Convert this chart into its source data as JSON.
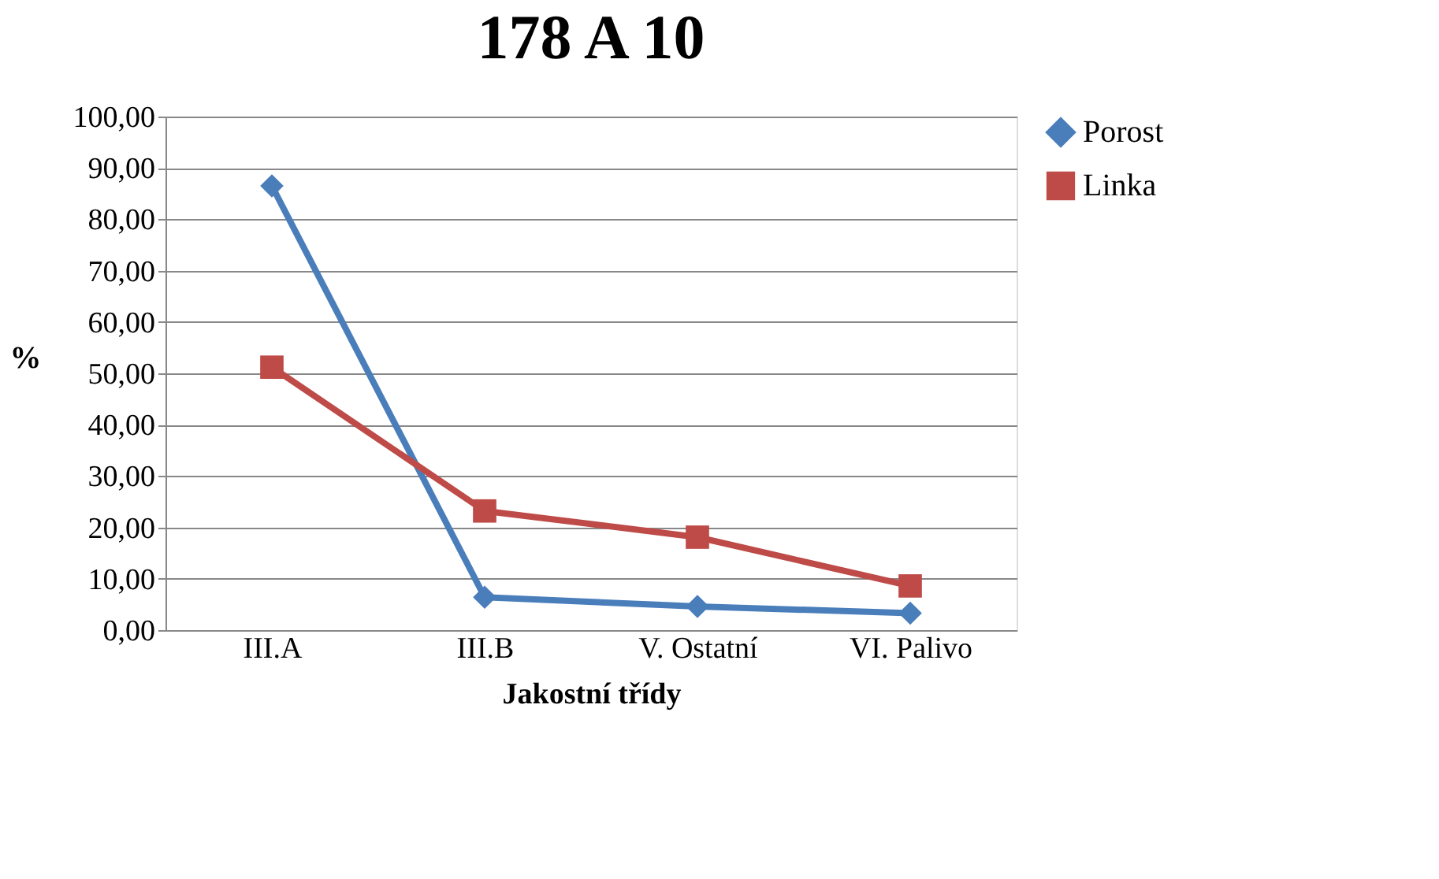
{
  "chart_data": {
    "type": "line",
    "title": "178 A 10",
    "xlabel": "Jakostní třídy",
    "ylabel": "%",
    "categories": [
      "III.A",
      "III.B",
      "V. Ostatní",
      "VI. Palivo"
    ],
    "series": [
      {
        "name": "Porost",
        "color": "#4a7ebb",
        "marker": "diamond",
        "values": [
          86.5,
          6.4,
          4.6,
          3.3
        ]
      },
      {
        "name": "Linka",
        "color": "#be4b48",
        "marker": "square",
        "values": [
          51.2,
          23.2,
          18.1,
          8.6
        ]
      }
    ],
    "ylim": [
      0,
      100
    ],
    "yticks": [
      {
        "value": 0,
        "label": "0,00"
      },
      {
        "value": 10,
        "label": "10,00"
      },
      {
        "value": 20,
        "label": "20,00"
      },
      {
        "value": 30,
        "label": "30,00"
      },
      {
        "value": 40,
        "label": "40,00"
      },
      {
        "value": 50,
        "label": "50,00"
      },
      {
        "value": 60,
        "label": "60,00"
      },
      {
        "value": 70,
        "label": "70,00"
      },
      {
        "value": 80,
        "label": "80,00"
      },
      {
        "value": 90,
        "label": "90,00"
      },
      {
        "value": 100,
        "label": "100,00"
      }
    ],
    "grid": "y",
    "legend": "right",
    "line_style": "solid"
  }
}
